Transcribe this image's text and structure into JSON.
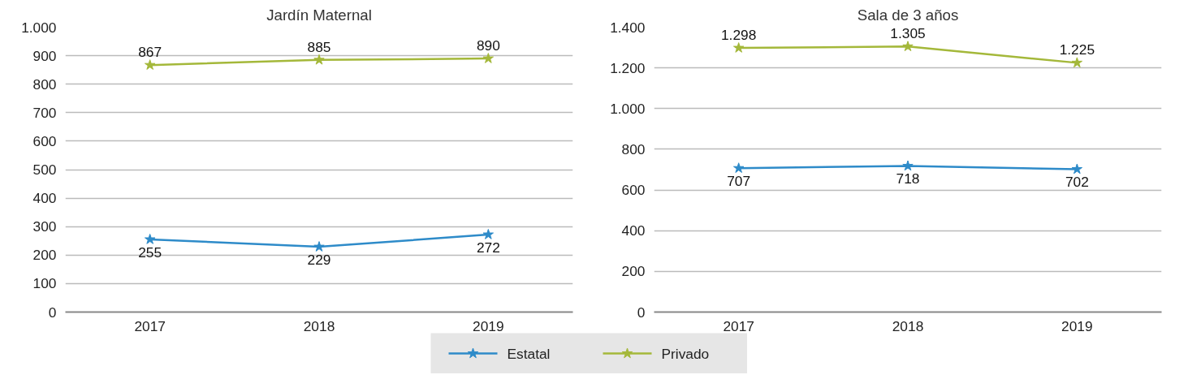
{
  "chart_data": [
    {
      "type": "line",
      "title": "Jardín Maternal",
      "categories": [
        "2017",
        "2018",
        "2019"
      ],
      "series": [
        {
          "name": "Estatal",
          "color": "#2e8bc9",
          "values": [
            255,
            229,
            272
          ]
        },
        {
          "name": "Privado",
          "color": "#a4b83a",
          "values": [
            867,
            885,
            890
          ]
        }
      ],
      "ylim": [
        0,
        1000
      ],
      "yticks": [
        0,
        100,
        200,
        300,
        400,
        500,
        600,
        700,
        800,
        900,
        {
          "value": 1000,
          "label": "1.000"
        }
      ],
      "grid": "y",
      "marker": "star",
      "data_labels": true,
      "legend": "bottom"
    },
    {
      "type": "line",
      "title": "Sala de 3 años",
      "categories": [
        "2017",
        "2018",
        "2019"
      ],
      "series": [
        {
          "color": "#2e8bc9",
          "values": [
            707,
            718,
            702
          ],
          "value_labels": [
            "707",
            "718",
            "702"
          ]
        },
        {
          "color": "#a4b83a",
          "values": [
            1298,
            1305,
            1225
          ],
          "value_labels": [
            "1.298",
            "1.305",
            "1.225"
          ]
        }
      ],
      "ylim": [
        0,
        1400
      ],
      "yticks": [
        0,
        200,
        400,
        600,
        800,
        {
          "value": 1000,
          "label": "1.000"
        },
        {
          "value": 1200,
          "label": "1.200"
        },
        {
          "value": 1400,
          "label": "1.400"
        }
      ],
      "grid": "y",
      "marker": "star"
    }
  ]
}
